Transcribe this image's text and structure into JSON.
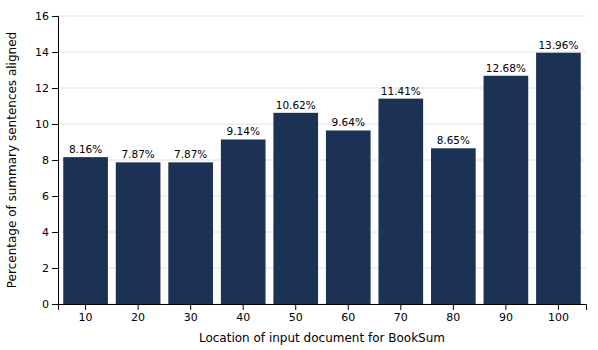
{
  "chart_data": {
    "type": "bar",
    "categories": [
      "10",
      "20",
      "30",
      "40",
      "50",
      "60",
      "70",
      "80",
      "90",
      "100"
    ],
    "values": [
      8.16,
      7.87,
      7.87,
      9.14,
      10.62,
      9.64,
      11.41,
      8.65,
      12.68,
      13.96
    ],
    "value_labels": [
      "8.16%",
      "7.87%",
      "7.87%",
      "9.14%",
      "10.62%",
      "9.64%",
      "11.41%",
      "8.65%",
      "12.68%",
      "13.96%"
    ],
    "data_labels": true,
    "color": "#1c3255",
    "xlabel": "Location of input document for BookSum",
    "ylabel": "Percentage of summary sentences aligned",
    "ylim": [
      0,
      16
    ],
    "yticks": [
      0,
      2,
      4,
      6,
      8,
      10,
      12,
      14,
      16
    ],
    "grid": true
  }
}
